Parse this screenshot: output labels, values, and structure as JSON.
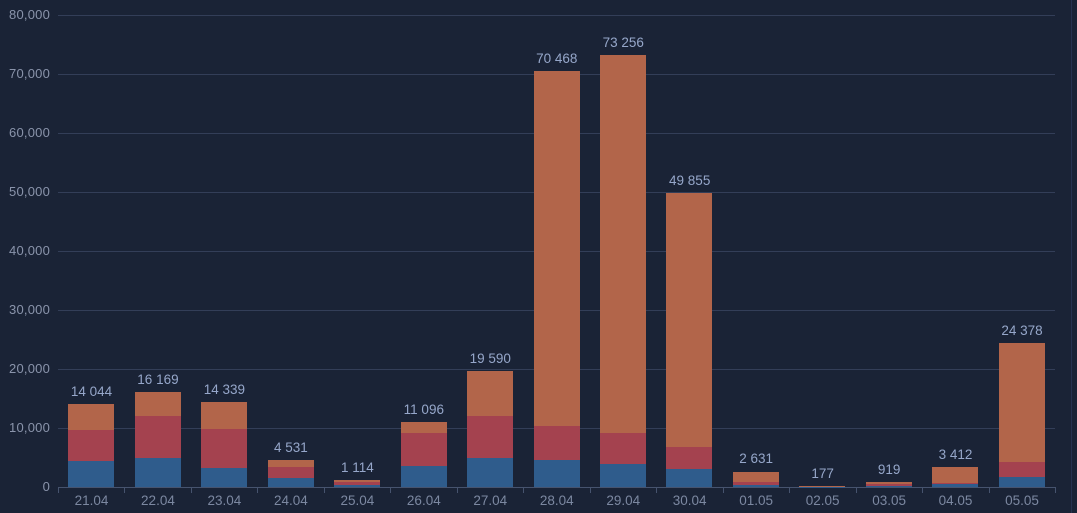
{
  "chart": {
    "type": "stacked-bar",
    "background": "#1a2336",
    "gridline_color": "#333e58",
    "axis_line_color": "#46536e",
    "y_axis": {
      "min": 0,
      "max": 80000,
      "step": 10000,
      "tick_labels": [
        "80,000",
        "70,000",
        "60,000",
        "50,000",
        "40,000",
        "30,000",
        "20,000",
        "10,000",
        "0"
      ],
      "label_color": "#8a94ab"
    },
    "x_axis": {
      "categories": [
        "21.04",
        "22.04",
        "23.04",
        "24.04",
        "25.04",
        "26.04",
        "27.04",
        "28.04",
        "29.04",
        "30.04",
        "01.05",
        "02.05",
        "03.05",
        "04.05",
        "05.05"
      ],
      "label_color": "#7c88a1"
    },
    "series": [
      {
        "name": "bottom-blue",
        "color": "#2f5c8c",
        "values": [
          4420,
          4980,
          3270,
          1470,
          400,
          3550,
          4850,
          4500,
          3850,
          3100,
          280,
          20,
          100,
          570,
          1640
        ]
      },
      {
        "name": "middle-red",
        "color": "#a4424f",
        "values": [
          5330,
          7100,
          6610,
          1860,
          430,
          5630,
          7270,
          5900,
          5350,
          3700,
          570,
          40,
          430,
          180,
          2540
        ]
      },
      {
        "name": "top-orange",
        "color": "#b2654a",
        "values": [
          4294,
          4089,
          4459,
          1201,
          284,
          1916,
          7470,
          60068,
          64056,
          43055,
          1781,
          117,
          389,
          2662,
          20198
        ]
      }
    ],
    "totals": [
      14044,
      16169,
      14339,
      4531,
      1114,
      11096,
      19590,
      70468,
      73256,
      49855,
      2631,
      177,
      919,
      3412,
      24378
    ],
    "value_labels": [
      "14 044",
      "16 169",
      "14 339",
      "4 531",
      "1 114",
      "11 096",
      "19 590",
      "70 468",
      "73 256",
      "49 855",
      "2 631",
      "177",
      "919",
      "3 412",
      "24 378"
    ],
    "value_label_color": "#96a7ca",
    "grid": true,
    "legend": false
  }
}
